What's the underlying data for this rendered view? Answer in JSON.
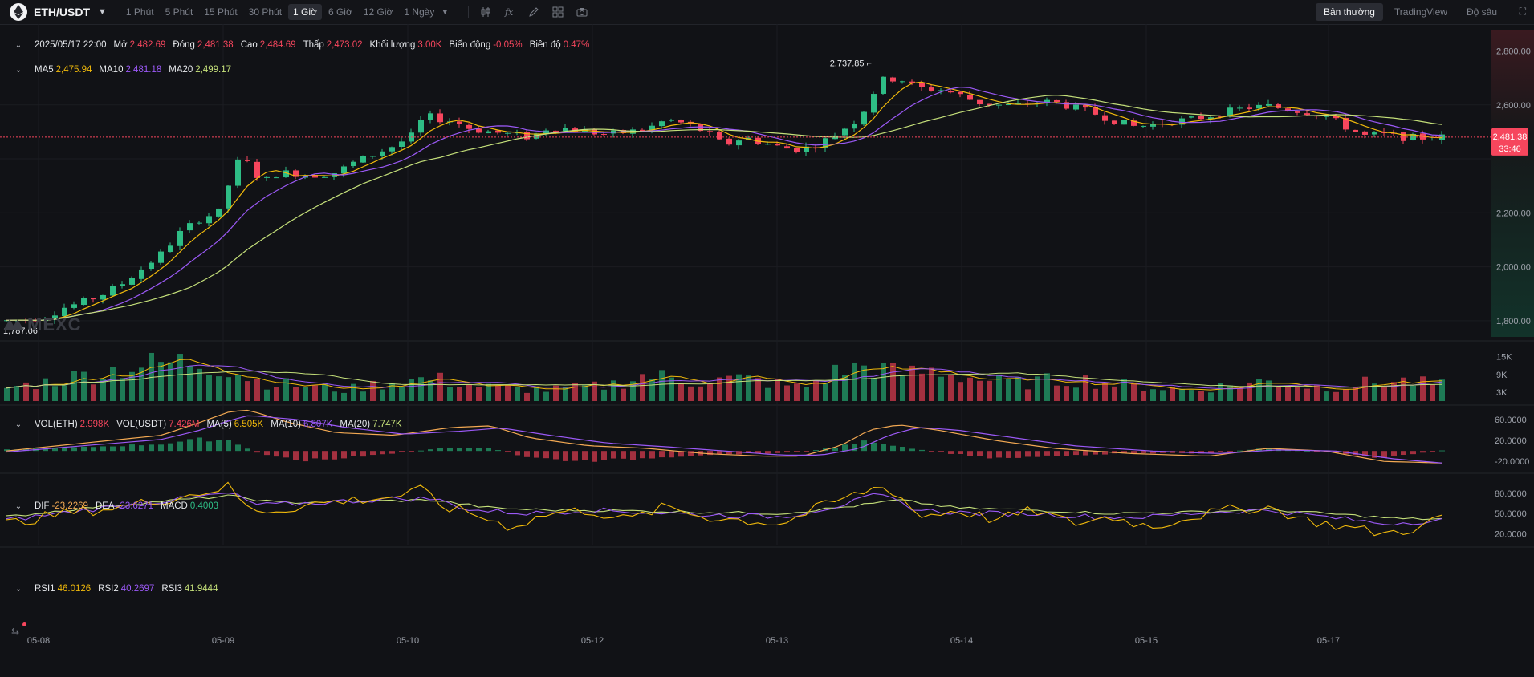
{
  "toolbar": {
    "pair": "ETH/USDT",
    "intervals": [
      "1 Phút",
      "5 Phút",
      "15 Phút",
      "30 Phút",
      "1 Giờ",
      "6 Giờ",
      "12 Giờ",
      "1 Ngày"
    ],
    "active_interval": "1 Giờ",
    "views": [
      "Bản thường",
      "TradingView",
      "Độ sâu"
    ],
    "active_view": "Bản thường"
  },
  "ohlc": {
    "date": "2025/05/17 22:00",
    "open_label": "Mở",
    "open": "2,482.69",
    "close_label": "Đóng",
    "close": "2,481.38",
    "high_label": "Cao",
    "high": "2,484.69",
    "low_label": "Thấp",
    "low": "2,473.02",
    "volume_label": "Khối lượng",
    "volume": "3.00K",
    "change_label": "Biến động",
    "change": "-0.05%",
    "amp_label": "Biên độ",
    "amp": "0.47%"
  },
  "ma_legend": {
    "ma5": "2,475.94",
    "ma10": "2,481.18",
    "ma20": "2,499.17"
  },
  "vol_legend": {
    "vol_eth_label": "VOL(ETH)",
    "vol_eth": "2.998K",
    "vol_usdt_label": "VOL(USDT)",
    "vol_usdt": "7.426M",
    "ma5_label": "MA(5)",
    "ma5": "6.505K",
    "ma10_label": "MA(10)",
    "ma10": "6.807K",
    "ma20_label": "MA(20)",
    "ma20": "7.747K"
  },
  "macd_legend": {
    "dif": "-23.2269",
    "dea": "-23.6271",
    "macd": "0.4003"
  },
  "rsi_legend": {
    "rsi1": "46.0126",
    "rsi2": "40.2697",
    "rsi3": "41.9444"
  },
  "watermark": "MEXC",
  "colors": {
    "up": "#2ebd85",
    "down": "#f6465d",
    "ma5": "#f0b90b",
    "ma10": "#9b59f6",
    "ma20": "#c5e07a",
    "dif": "#f3a953",
    "dea": "#9b59f6",
    "bg": "#111216",
    "volUp": "#1e7a55",
    "volDown": "#a3303f"
  },
  "chart_data": {
    "type": "candlestick",
    "title": "ETH/USDT 1 Giờ",
    "x_ticks": [
      "05-08",
      "05-09",
      "05-10",
      "05-12",
      "05-13",
      "05-14",
      "05-15",
      "05-17"
    ],
    "price_axis": {
      "ticks": [
        "2,800.00",
        "2,600.00",
        "2,200.00",
        "2,000.00",
        "1,800.00"
      ],
      "range": [
        1740,
        2870
      ]
    },
    "current_price": "2,481.38",
    "countdown": "33:46",
    "max_label": "2,737.85",
    "min_label": "1,787.06",
    "price_path": [
      [
        0,
        1800
      ],
      [
        10,
        1805
      ],
      [
        20,
        1815
      ],
      [
        30,
        1850
      ],
      [
        40,
        1870
      ],
      [
        50,
        1900
      ],
      [
        60,
        1940
      ],
      [
        70,
        1995
      ],
      [
        80,
        2050
      ],
      [
        90,
        2130
      ],
      [
        100,
        2180
      ],
      [
        110,
        2205
      ],
      [
        115,
        2320
      ],
      [
        120,
        2400
      ],
      [
        125,
        2380
      ],
      [
        130,
        2330
      ],
      [
        135,
        2320
      ],
      [
        140,
        2350
      ],
      [
        150,
        2345
      ],
      [
        160,
        2340
      ],
      [
        170,
        2350
      ],
      [
        180,
        2390
      ],
      [
        190,
        2420
      ],
      [
        200,
        2450
      ],
      [
        210,
        2490
      ],
      [
        215,
        2560
      ],
      [
        222,
        2550
      ],
      [
        230,
        2540
      ],
      [
        240,
        2510
      ],
      [
        250,
        2500
      ],
      [
        260,
        2490
      ],
      [
        270,
        2480
      ],
      [
        280,
        2520
      ],
      [
        290,
        2510
      ],
      [
        300,
        2500
      ],
      [
        310,
        2490
      ],
      [
        320,
        2500
      ],
      [
        330,
        2510
      ],
      [
        340,
        2545
      ],
      [
        350,
        2530
      ],
      [
        360,
        2500
      ],
      [
        370,
        2450
      ],
      [
        380,
        2480
      ],
      [
        390,
        2460
      ],
      [
        400,
        2440
      ],
      [
        410,
        2435
      ],
      [
        420,
        2460
      ],
      [
        430,
        2505
      ],
      [
        440,
        2555
      ],
      [
        445,
        2620
      ],
      [
        450,
        2690
      ],
      [
        460,
        2700
      ],
      [
        470,
        2660
      ],
      [
        480,
        2660
      ],
      [
        490,
        2640
      ],
      [
        500,
        2610
      ],
      [
        510,
        2600
      ],
      [
        520,
        2595
      ],
      [
        530,
        2610
      ],
      [
        540,
        2610
      ],
      [
        550,
        2590
      ],
      [
        560,
        2570
      ],
      [
        570,
        2545
      ],
      [
        580,
        2520
      ],
      [
        590,
        2525
      ],
      [
        600,
        2540
      ],
      [
        610,
        2545
      ],
      [
        620,
        2560
      ],
      [
        630,
        2575
      ],
      [
        640,
        2590
      ],
      [
        650,
        2595
      ],
      [
        660,
        2585
      ],
      [
        670,
        2575
      ],
      [
        680,
        2560
      ],
      [
        690,
        2520
      ],
      [
        700,
        2485
      ],
      [
        710,
        2490
      ],
      [
        720,
        2480
      ],
      [
        730,
        2478
      ],
      [
        740,
        2481
      ]
    ],
    "volume_axis": {
      "ticks": [
        "15K",
        "9K",
        "3K"
      ],
      "range": [
        0,
        19
      ]
    },
    "volume_envelope": [
      [
        0,
        6
      ],
      [
        30,
        10
      ],
      [
        60,
        15
      ],
      [
        80,
        17
      ],
      [
        95,
        18
      ],
      [
        110,
        16
      ],
      [
        130,
        9
      ],
      [
        150,
        7
      ],
      [
        175,
        5
      ],
      [
        200,
        9
      ],
      [
        220,
        10
      ],
      [
        250,
        6
      ],
      [
        280,
        5
      ],
      [
        310,
        7
      ],
      [
        330,
        12
      ],
      [
        350,
        9
      ],
      [
        380,
        10
      ],
      [
        410,
        6
      ],
      [
        430,
        14
      ],
      [
        445,
        16
      ],
      [
        460,
        12
      ],
      [
        480,
        14
      ],
      [
        500,
        10
      ],
      [
        520,
        8
      ],
      [
        550,
        10
      ],
      [
        580,
        7
      ],
      [
        610,
        5
      ],
      [
        630,
        7
      ],
      [
        650,
        9
      ],
      [
        680,
        6
      ],
      [
        700,
        8
      ],
      [
        720,
        9
      ],
      [
        740,
        7
      ]
    ],
    "macd_axis": {
      "ticks": [
        "60.0000",
        "20.0000",
        "-20.0000"
      ],
      "range": [
        -35,
        80
      ]
    },
    "dif_path": [
      [
        0,
        0
      ],
      [
        40,
        15
      ],
      [
        80,
        30
      ],
      [
        100,
        55
      ],
      [
        115,
        75
      ],
      [
        125,
        78
      ],
      [
        145,
        55
      ],
      [
        170,
        35
      ],
      [
        200,
        30
      ],
      [
        230,
        45
      ],
      [
        250,
        48
      ],
      [
        270,
        25
      ],
      [
        300,
        10
      ],
      [
        330,
        5
      ],
      [
        360,
        -5
      ],
      [
        390,
        -10
      ],
      [
        410,
        -10
      ],
      [
        430,
        10
      ],
      [
        445,
        40
      ],
      [
        460,
        50
      ],
      [
        480,
        40
      ],
      [
        510,
        20
      ],
      [
        540,
        5
      ],
      [
        580,
        -5
      ],
      [
        620,
        -10
      ],
      [
        650,
        5
      ],
      [
        680,
        0
      ],
      [
        710,
        -20
      ],
      [
        740,
        -23
      ]
    ],
    "dea_path": [
      [
        0,
        -2
      ],
      [
        40,
        10
      ],
      [
        80,
        22
      ],
      [
        100,
        40
      ],
      [
        115,
        58
      ],
      [
        125,
        68
      ],
      [
        150,
        60
      ],
      [
        175,
        45
      ],
      [
        205,
        32
      ],
      [
        235,
        38
      ],
      [
        255,
        44
      ],
      [
        280,
        30
      ],
      [
        310,
        15
      ],
      [
        340,
        8
      ],
      [
        370,
        0
      ],
      [
        400,
        -8
      ],
      [
        420,
        -8
      ],
      [
        440,
        5
      ],
      [
        455,
        30
      ],
      [
        470,
        45
      ],
      [
        490,
        40
      ],
      [
        520,
        25
      ],
      [
        550,
        10
      ],
      [
        590,
        0
      ],
      [
        625,
        -5
      ],
      [
        655,
        2
      ],
      [
        685,
        0
      ],
      [
        715,
        -15
      ],
      [
        740,
        -23
      ]
    ],
    "macd_hist_envelope": [
      [
        0,
        3
      ],
      [
        40,
        8
      ],
      [
        80,
        15
      ],
      [
        100,
        25
      ],
      [
        115,
        22
      ],
      [
        130,
        -5
      ],
      [
        150,
        -20
      ],
      [
        175,
        -15
      ],
      [
        200,
        -5
      ],
      [
        230,
        8
      ],
      [
        250,
        5
      ],
      [
        270,
        -15
      ],
      [
        300,
        -22
      ],
      [
        330,
        -15
      ],
      [
        360,
        -8
      ],
      [
        390,
        -5
      ],
      [
        410,
        -3
      ],
      [
        430,
        10
      ],
      [
        445,
        22
      ],
      [
        460,
        10
      ],
      [
        480,
        -3
      ],
      [
        510,
        -15
      ],
      [
        540,
        -10
      ],
      [
        580,
        -5
      ],
      [
        620,
        -5
      ],
      [
        650,
        6
      ],
      [
        680,
        -2
      ],
      [
        710,
        -15
      ],
      [
        740,
        1
      ]
    ],
    "rsi_axis": {
      "ticks": [
        "80.0000",
        "50.0000",
        "20.0000"
      ],
      "range": [
        5,
        100
      ]
    },
    "rsi1_path": [
      [
        0,
        35
      ],
      [
        30,
        50
      ],
      [
        60,
        60
      ],
      [
        90,
        75
      ],
      [
        115,
        90
      ],
      [
        125,
        55
      ],
      [
        140,
        55
      ],
      [
        160,
        65
      ],
      [
        180,
        70
      ],
      [
        200,
        75
      ],
      [
        215,
        85
      ],
      [
        225,
        60
      ],
      [
        240,
        50
      ],
      [
        260,
        30
      ],
      [
        280,
        50
      ],
      [
        300,
        55
      ],
      [
        320,
        40
      ],
      [
        340,
        60
      ],
      [
        360,
        45
      ],
      [
        380,
        40
      ],
      [
        400,
        35
      ],
      [
        420,
        60
      ],
      [
        440,
        80
      ],
      [
        450,
        90
      ],
      [
        460,
        80
      ],
      [
        470,
        45
      ],
      [
        490,
        55
      ],
      [
        510,
        40
      ],
      [
        530,
        55
      ],
      [
        550,
        35
      ],
      [
        570,
        45
      ],
      [
        590,
        30
      ],
      [
        610,
        45
      ],
      [
        630,
        55
      ],
      [
        650,
        60
      ],
      [
        670,
        40
      ],
      [
        690,
        30
      ],
      [
        710,
        20
      ],
      [
        730,
        30
      ],
      [
        740,
        46
      ]
    ],
    "rsi2_path": [
      [
        0,
        40
      ],
      [
        40,
        55
      ],
      [
        80,
        68
      ],
      [
        115,
        80
      ],
      [
        130,
        62
      ],
      [
        160,
        66
      ],
      [
        200,
        72
      ],
      [
        220,
        72
      ],
      [
        240,
        55
      ],
      [
        270,
        50
      ],
      [
        300,
        55
      ],
      [
        330,
        52
      ],
      [
        360,
        48
      ],
      [
        400,
        45
      ],
      [
        430,
        62
      ],
      [
        450,
        78
      ],
      [
        470,
        55
      ],
      [
        500,
        50
      ],
      [
        530,
        50
      ],
      [
        560,
        45
      ],
      [
        590,
        45
      ],
      [
        620,
        52
      ],
      [
        650,
        55
      ],
      [
        680,
        45
      ],
      [
        710,
        35
      ],
      [
        740,
        40
      ]
    ],
    "rsi3_path": [
      [
        0,
        45
      ],
      [
        40,
        58
      ],
      [
        80,
        68
      ],
      [
        115,
        76
      ],
      [
        140,
        66
      ],
      [
        180,
        68
      ],
      [
        220,
        70
      ],
      [
        250,
        58
      ],
      [
        280,
        55
      ],
      [
        320,
        54
      ],
      [
        360,
        52
      ],
      [
        400,
        50
      ],
      [
        440,
        62
      ],
      [
        460,
        70
      ],
      [
        490,
        58
      ],
      [
        530,
        55
      ],
      [
        570,
        50
      ],
      [
        610,
        52
      ],
      [
        650,
        56
      ],
      [
        690,
        48
      ],
      [
        720,
        42
      ],
      [
        740,
        42
      ]
    ]
  }
}
